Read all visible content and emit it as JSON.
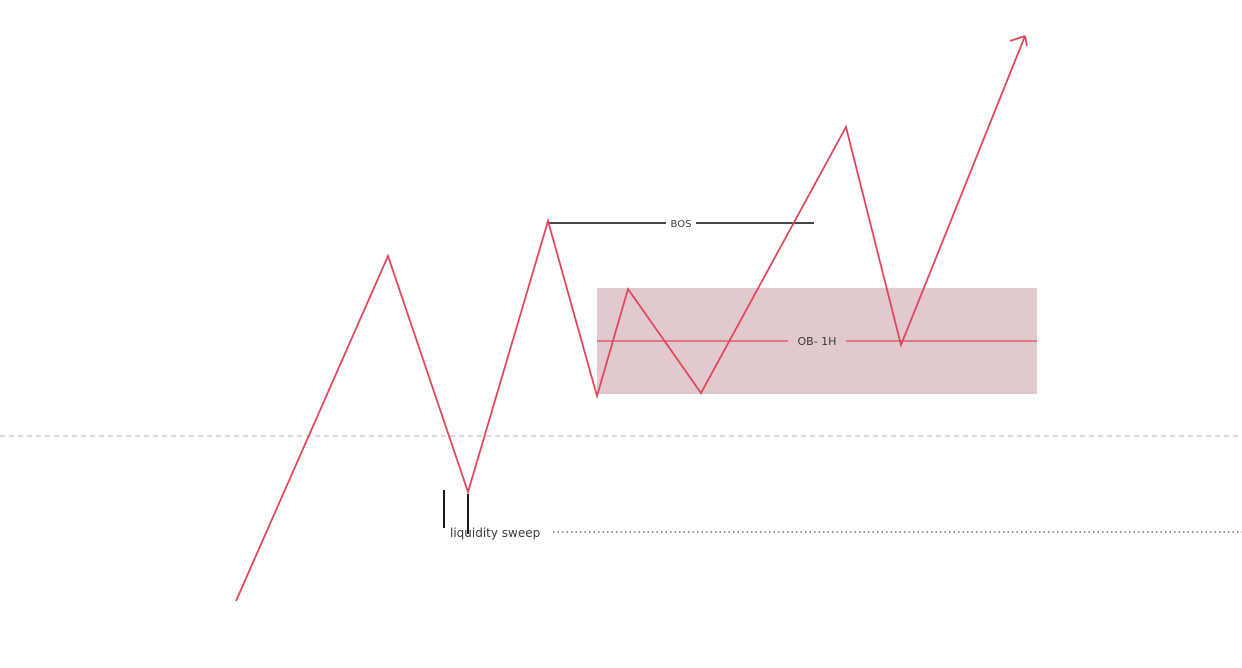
{
  "colors": {
    "price_line": "#e0465c",
    "ob_zone_fill": "#dcc0c6",
    "ob_midline": "#e0465c",
    "bos_line": "#2b2b2b",
    "dashed_line": "#b5b5b5",
    "dotted_line": "#555555",
    "sweep_marker": "#1a1a1a",
    "label_text": "#3a3a3a"
  },
  "labels": {
    "bos": "BOS",
    "order_block": "OB- 1H",
    "liquidity_sweep": "liquidity sweep"
  },
  "icons": {
    "arrowhead": "arrow-up-right-icon"
  }
}
